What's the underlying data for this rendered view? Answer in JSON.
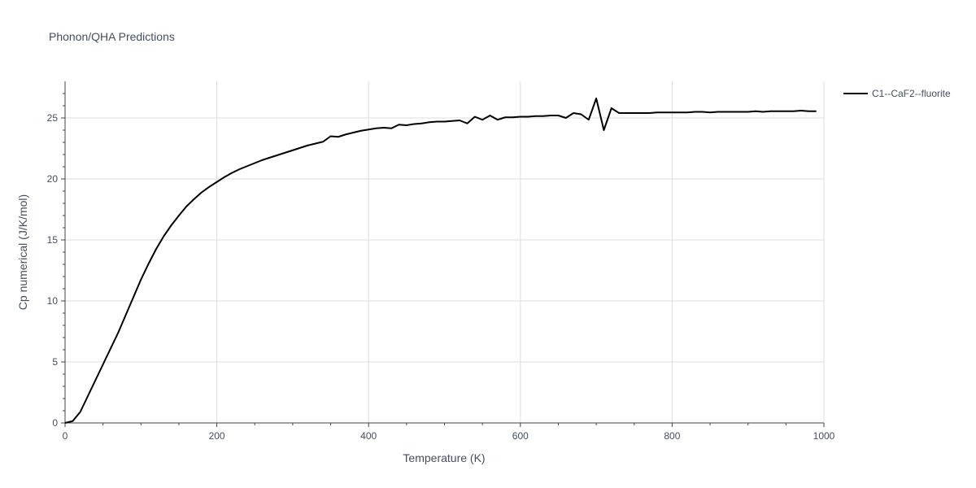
{
  "chart_data": {
    "type": "line",
    "title": "Phonon/QHA Predictions",
    "xlabel": "Temperature (K)",
    "ylabel": "Cp numerical (J/K/mol)",
    "xlim": [
      0,
      1000
    ],
    "ylim": [
      0,
      28
    ],
    "xticks": [
      0,
      200,
      400,
      600,
      800,
      1000
    ],
    "yticks": [
      0,
      5,
      10,
      15,
      20,
      25
    ],
    "grid": true,
    "legend_position": "top-right",
    "series": [
      {
        "name": "C1--CaF2--fluorite",
        "color": "#000000",
        "x": [
          0,
          10,
          20,
          30,
          40,
          50,
          60,
          70,
          80,
          90,
          100,
          110,
          120,
          130,
          140,
          150,
          160,
          170,
          180,
          190,
          200,
          210,
          220,
          230,
          240,
          250,
          260,
          270,
          280,
          290,
          300,
          310,
          320,
          330,
          340,
          350,
          360,
          370,
          380,
          390,
          400,
          410,
          420,
          430,
          440,
          450,
          460,
          470,
          480,
          490,
          500,
          510,
          520,
          530,
          540,
          550,
          560,
          570,
          580,
          590,
          600,
          610,
          620,
          630,
          640,
          650,
          660,
          670,
          680,
          690,
          700,
          710,
          720,
          730,
          740,
          750,
          760,
          770,
          780,
          790,
          800,
          810,
          820,
          830,
          840,
          850,
          860,
          870,
          880,
          890,
          900,
          910,
          920,
          930,
          940,
          950,
          960,
          970,
          980,
          990
        ],
        "y": [
          0.0,
          0.15,
          0.9,
          2.2,
          3.5,
          4.8,
          6.1,
          7.4,
          8.85,
          10.3,
          11.75,
          13.05,
          14.25,
          15.3,
          16.2,
          17.0,
          17.75,
          18.35,
          18.9,
          19.35,
          19.75,
          20.15,
          20.5,
          20.8,
          21.05,
          21.3,
          21.55,
          21.75,
          21.95,
          22.15,
          22.35,
          22.55,
          22.75,
          22.9,
          23.05,
          23.5,
          23.45,
          23.65,
          23.8,
          23.95,
          24.05,
          24.15,
          24.2,
          24.15,
          24.45,
          24.4,
          24.5,
          24.55,
          24.65,
          24.7,
          24.7,
          24.75,
          24.8,
          24.55,
          25.1,
          24.85,
          25.2,
          24.85,
          25.05,
          25.05,
          25.1,
          25.1,
          25.15,
          25.15,
          25.2,
          25.2,
          25.0,
          25.4,
          25.3,
          24.85,
          26.6,
          24.0,
          25.8,
          25.4,
          25.4,
          25.4,
          25.4,
          25.4,
          25.45,
          25.45,
          25.45,
          25.45,
          25.45,
          25.5,
          25.5,
          25.45,
          25.5,
          25.5,
          25.5,
          25.5,
          25.5,
          25.55,
          25.5,
          25.55,
          25.55,
          25.55,
          25.55,
          25.6,
          25.55,
          25.55
        ]
      }
    ]
  }
}
